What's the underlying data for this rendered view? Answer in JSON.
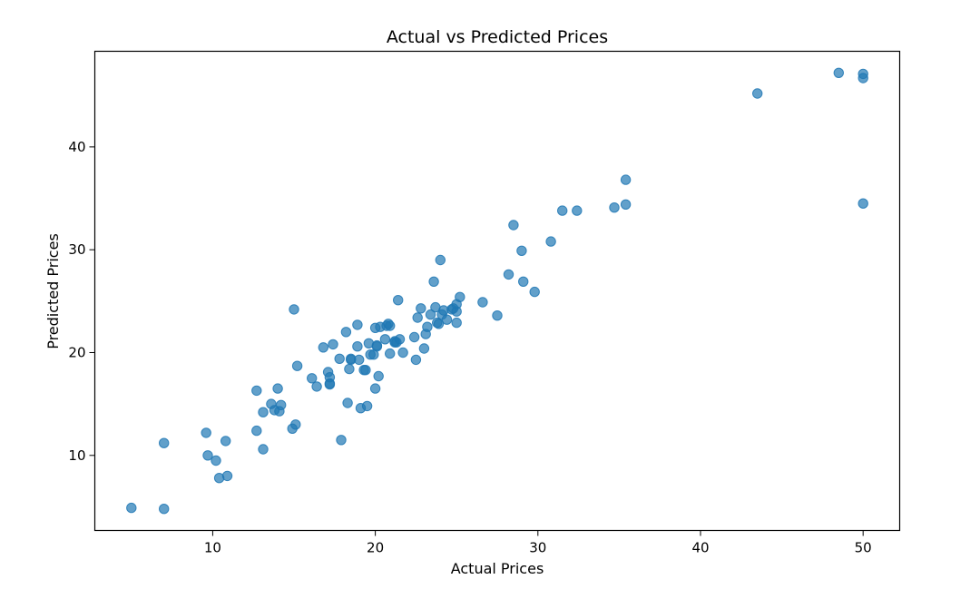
{
  "chart_data": {
    "type": "scatter",
    "title": "Actual vs Predicted Prices",
    "xlabel": "Actual Prices",
    "ylabel": "Predicted Prices",
    "xlim": [
      2.75,
      52.25
    ],
    "ylim": [
      2.7,
      49.3
    ],
    "xticks": [
      10,
      20,
      30,
      40,
      50
    ],
    "yticks": [
      10,
      20,
      30,
      40
    ],
    "grid": false,
    "legend": "none",
    "point_color": "#1f77b4",
    "point_alpha": 0.7,
    "series": [
      {
        "x": [
          5.0,
          7.0,
          7.0,
          9.6,
          9.7,
          10.2,
          10.4,
          10.8,
          10.9,
          12.7,
          12.7,
          13.1,
          13.1,
          13.6,
          13.8,
          14.0,
          14.1,
          14.2,
          14.9,
          15.0,
          15.1,
          15.2,
          16.1,
          16.4,
          16.8,
          17.1,
          17.2,
          17.2,
          17.2,
          17.4,
          17.8,
          17.9,
          18.2,
          18.3,
          18.4,
          18.5,
          18.5,
          18.9,
          18.9,
          19.0,
          19.1,
          19.3,
          19.4,
          19.5,
          19.6,
          19.7,
          19.9,
          20.0,
          20.0,
          20.1,
          20.1,
          20.2,
          20.3,
          20.6,
          20.7,
          20.8,
          20.9,
          20.9,
          21.2,
          21.2,
          21.3,
          21.4,
          21.5,
          21.7,
          22.4,
          22.5,
          22.6,
          22.8,
          23.0,
          23.1,
          23.2,
          23.4,
          23.6,
          23.7,
          23.8,
          23.9,
          24.0,
          24.1,
          24.2,
          24.4,
          24.7,
          24.8,
          25.0,
          25.0,
          25.0,
          25.2,
          26.6,
          27.5,
          28.2,
          28.5,
          29.0,
          29.1,
          29.8,
          30.8,
          31.5,
          32.4,
          34.7,
          35.4,
          35.4,
          43.5,
          48.5,
          50.0,
          50.0,
          50.0
        ],
        "y": [
          4.9,
          4.8,
          11.2,
          12.2,
          10.0,
          9.5,
          7.8,
          11.4,
          8.0,
          16.3,
          12.4,
          10.6,
          14.2,
          15.0,
          14.4,
          16.5,
          14.3,
          14.9,
          12.6,
          24.2,
          13.0,
          18.7,
          17.5,
          16.7,
          20.5,
          18.1,
          17.6,
          17.0,
          16.9,
          20.8,
          19.4,
          11.5,
          22.0,
          15.1,
          18.4,
          19.3,
          19.4,
          20.6,
          22.7,
          19.3,
          14.6,
          18.3,
          18.3,
          14.8,
          20.9,
          19.8,
          19.8,
          16.5,
          22.4,
          20.7,
          20.6,
          17.7,
          22.5,
          21.3,
          22.6,
          22.8,
          22.6,
          19.9,
          21.0,
          21.1,
          21.0,
          25.1,
          21.3,
          20.0,
          21.5,
          19.3,
          23.4,
          24.3,
          20.4,
          21.8,
          22.5,
          23.7,
          26.9,
          24.4,
          22.9,
          22.8,
          29.0,
          23.7,
          24.1,
          23.2,
          24.2,
          24.3,
          22.9,
          24.0,
          24.7,
          25.4,
          24.9,
          23.6,
          27.6,
          32.4,
          29.9,
          26.9,
          25.9,
          30.8,
          33.8,
          33.8,
          34.1,
          34.4,
          36.8,
          45.2,
          47.2,
          47.1,
          46.7,
          34.5
        ]
      }
    ]
  }
}
